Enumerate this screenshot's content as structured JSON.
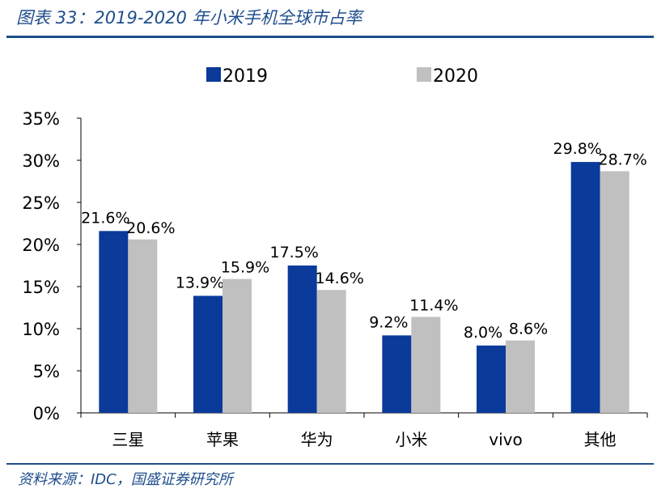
{
  "title": "图表 33：2019-2020 年小米手机全球市占率",
  "source": "资料来源：IDC，国盛证券研究所",
  "colors": {
    "2019": "#0a3a9a",
    "2020": "#c0c0c0",
    "accent": "#1f4e8c"
  },
  "chart_data": {
    "type": "bar",
    "categories": [
      "三星",
      "苹果",
      "华为",
      "小米",
      "vivo",
      "其他"
    ],
    "series": [
      {
        "name": "2019",
        "values": [
          21.6,
          13.9,
          17.5,
          9.2,
          8.0,
          29.8
        ],
        "labels": [
          "21.6%",
          "13.9%",
          "17.5%",
          "9.2%",
          "8.0%",
          "29.8%"
        ]
      },
      {
        "name": "2020",
        "values": [
          20.6,
          15.9,
          14.6,
          11.4,
          8.6,
          28.7
        ],
        "labels": [
          "20.6%",
          "15.9%",
          "14.6%",
          "11.4%",
          "8.6%",
          "28.7%"
        ]
      }
    ],
    "ylim": [
      0,
      35
    ],
    "yticks": [
      "0%",
      "5%",
      "10%",
      "15%",
      "20%",
      "25%",
      "30%",
      "35%"
    ],
    "grid": false,
    "legend": "top"
  }
}
